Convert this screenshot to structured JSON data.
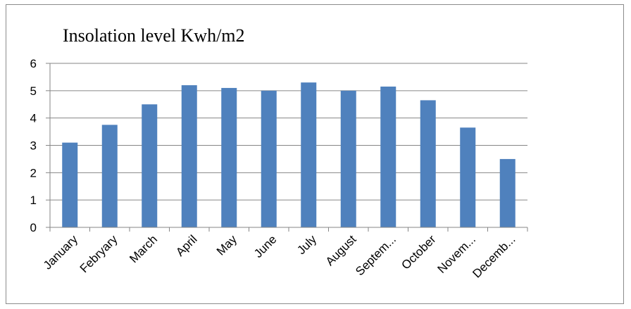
{
  "chart_data": {
    "type": "bar",
    "title": "Insolation  level  Kwh/m2",
    "xlabel": "",
    "ylabel": "",
    "categories": [
      "January",
      "Febryary",
      "March",
      "April",
      "May",
      "June",
      "July",
      "August",
      "Septem...",
      "October",
      "Novem...",
      "Decemb..."
    ],
    "values": [
      3.1,
      3.75,
      4.5,
      5.2,
      5.1,
      5.0,
      5.3,
      5.0,
      5.15,
      4.65,
      3.65,
      2.5
    ],
    "ylim": [
      0,
      6
    ],
    "yticks": [
      "0",
      "1",
      "2",
      "3",
      "4",
      "5",
      "6"
    ],
    "grid": true,
    "legend": "none",
    "bar_color": "#4F81BD",
    "grid_color": "#868686"
  }
}
